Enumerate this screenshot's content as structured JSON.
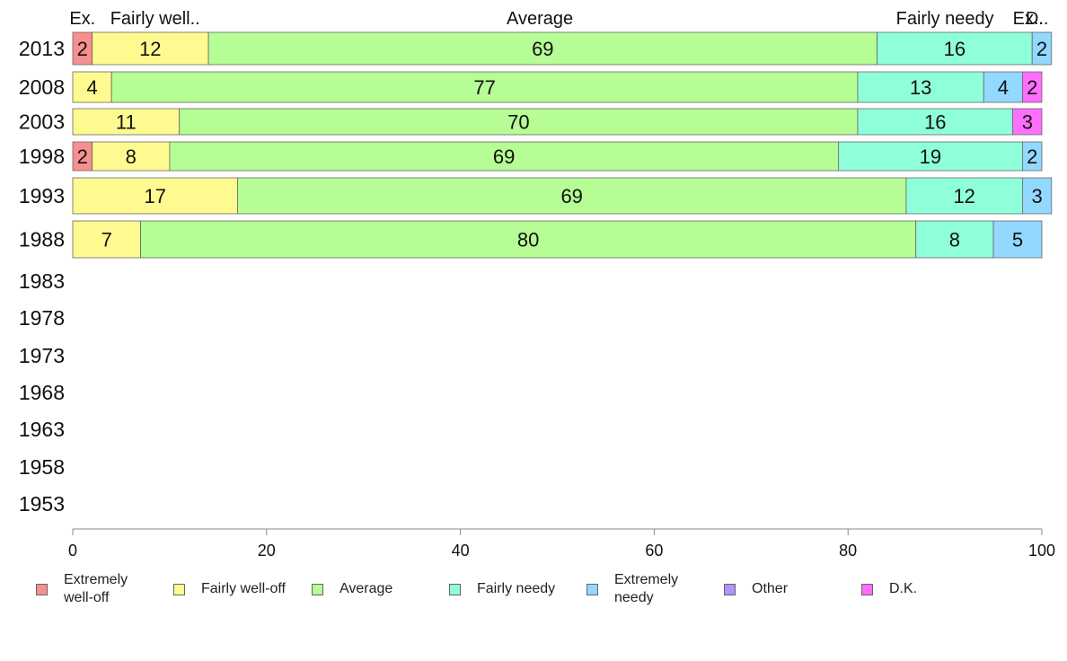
{
  "chart_data": {
    "type": "bar",
    "orientation": "horizontal",
    "stacked": true,
    "categories": [
      "2013",
      "2008",
      "2003",
      "1998",
      "1993",
      "1988",
      "1983",
      "1978",
      "1973",
      "1968",
      "1963",
      "1958",
      "1953"
    ],
    "series": [
      {
        "name": "Extremely well-off",
        "color": "#f88f8f",
        "values": [
          2,
          0,
          0,
          2,
          0,
          0,
          null,
          null,
          null,
          null,
          null,
          null,
          null
        ]
      },
      {
        "name": "Fairly well-off",
        "color": "#fffa90",
        "values": [
          12,
          4,
          11,
          8,
          17,
          7,
          null,
          null,
          null,
          null,
          null,
          null,
          null
        ]
      },
      {
        "name": "Average",
        "color": "#b5fd94",
        "values": [
          69,
          77,
          70,
          69,
          69,
          80,
          null,
          null,
          null,
          null,
          null,
          null,
          null
        ]
      },
      {
        "name": "Fairly needy",
        "color": "#8effd9",
        "values": [
          16,
          13,
          16,
          19,
          12,
          8,
          null,
          null,
          null,
          null,
          null,
          null,
          null
        ]
      },
      {
        "name": "Extremely needy",
        "color": "#92d8ff",
        "values": [
          2,
          4,
          0,
          2,
          3,
          5,
          null,
          null,
          null,
          null,
          null,
          null,
          null
        ]
      },
      {
        "name": "Other",
        "color": "#b290ff",
        "values": [
          0,
          0,
          0,
          0,
          0,
          0,
          null,
          null,
          null,
          null,
          null,
          null,
          null
        ]
      },
      {
        "name": "D.K.",
        "color": "#ff6efd",
        "values": [
          0,
          2,
          3,
          0,
          0,
          0,
          null,
          null,
          null,
          null,
          null,
          null,
          null
        ]
      }
    ],
    "top_labels": [
      "Ex.",
      "Fairly well..",
      "Average",
      "Fairly needy",
      "Ex..",
      "D.."
    ],
    "xlim": [
      0,
      100
    ],
    "xticks": [
      0,
      20,
      40,
      60,
      80,
      100
    ],
    "grid": false,
    "legend_position": "bottom"
  },
  "legend": {
    "items": [
      {
        "label": "Extremely\nwell-off",
        "color": "#f88f8f"
      },
      {
        "label": "Fairly well-off",
        "color": "#fffa90"
      },
      {
        "label": "Average",
        "color": "#b5fd94"
      },
      {
        "label": "Fairly needy",
        "color": "#8effd9"
      },
      {
        "label": "Extremely\nneedy",
        "color": "#92d8ff"
      },
      {
        "label": "Other",
        "color": "#b290ff"
      },
      {
        "label": "D.K.",
        "color": "#ff6efd"
      }
    ]
  }
}
